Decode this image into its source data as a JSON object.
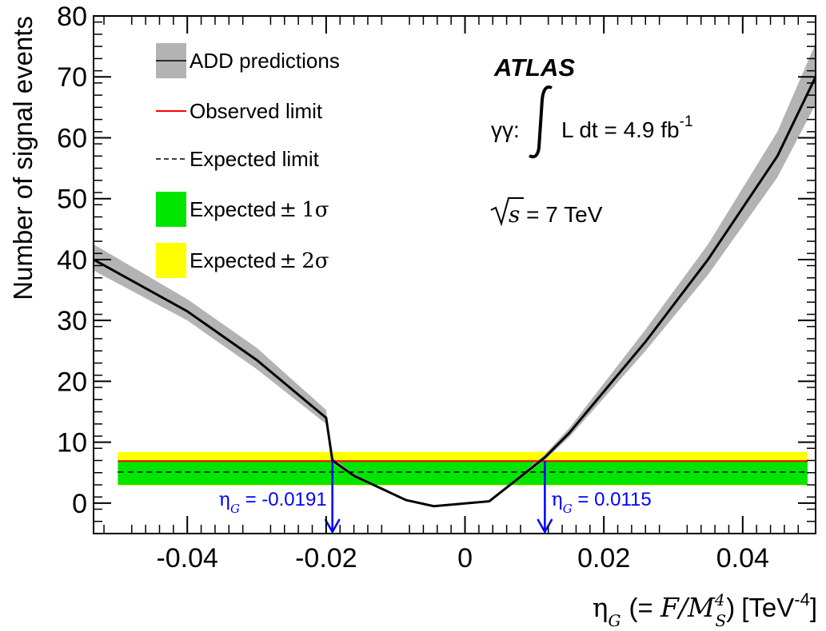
{
  "chart_data": {
    "type": "line",
    "xlabel": {
      "main": "η",
      "sub": "G",
      "paren_open": "(= ",
      "formula": "F/M",
      "sup": "4",
      "sub2": "S",
      "paren_close": ")",
      "unit": "[TeV",
      "unit_exp": "-4",
      "unit_close": "]"
    },
    "ylabel": "Number of signal events",
    "xlim": [
      -0.0535,
      0.0505
    ],
    "ylim": [
      -5,
      80
    ],
    "x_ticks": [
      "-0.04",
      "-0.02",
      "0",
      "0.02",
      "0.04"
    ],
    "x_tick_values": [
      -0.04,
      -0.02,
      0,
      0.02,
      0.04
    ],
    "y_ticks": [
      "0",
      "10",
      "20",
      "30",
      "40",
      "50",
      "60",
      "70",
      "80"
    ],
    "y_tick_values": [
      0,
      10,
      20,
      30,
      40,
      50,
      60,
      70,
      80
    ],
    "add_prediction": {
      "name": "ADD predictions",
      "x": [
        -0.0535,
        -0.04,
        -0.03,
        -0.02,
        -0.0191,
        -0.016,
        -0.0085,
        -0.0045,
        0.0035,
        0.0115,
        0.015,
        0.026,
        0.035,
        0.045,
        0.0505
      ],
      "y": [
        40,
        31.5,
        23.5,
        14.0,
        7.0,
        4.5,
        0.5,
        -0.5,
        0.3,
        7.5,
        11.5,
        26.5,
        40.0,
        57.0,
        70.0
      ],
      "band_lo": [
        38.2,
        30.0,
        22.0,
        13.0,
        6.6,
        4.3,
        0.4,
        -0.6,
        0.2,
        7.1,
        10.8,
        25.0,
        37.5,
        53.5,
        65.5
      ],
      "band_hi": [
        42.5,
        33.5,
        25.5,
        15.3,
        7.5,
        4.8,
        0.6,
        -0.4,
        0.4,
        8.0,
        12.3,
        28.5,
        42.5,
        61.0,
        75.5
      ]
    },
    "observed_limit": {
      "name": "Observed limit",
      "value": 6.9,
      "color": "#ff0000"
    },
    "expected_limit": {
      "name": "Expected limit",
      "value": 5.1
    },
    "band_1sigma": {
      "name": "Expected ± 1σ",
      "lo": 3.0,
      "hi": 7.0,
      "color": "#00e600"
    },
    "band_2sigma": {
      "name": "Expected ± 2σ",
      "lo": 2.9,
      "hi": 8.4,
      "color": "#ffff00"
    },
    "band_x_range": [
      -0.05,
      0.0505
    ],
    "limits": [
      {
        "label_main": "η",
        "label_sub": "G",
        "label_value": " = -0.0191",
        "x": -0.0191,
        "color": "#0000ff"
      },
      {
        "label_main": "η",
        "label_sub": "G",
        "label_value": " = 0.0115",
        "x": 0.0115,
        "color": "#0000ff"
      }
    ],
    "legend": [
      {
        "key": "add",
        "label": "ADD predictions"
      },
      {
        "key": "obs",
        "label": "Observed limit"
      },
      {
        "key": "exp",
        "label": "Expected limit"
      },
      {
        "key": "s1",
        "label_main": "Expected",
        "label_pm": "±",
        "label_sig": "1σ"
      },
      {
        "key": "s2",
        "label_main": "Expected",
        "label_pm": "±",
        "label_sig": "2σ"
      }
    ],
    "annotations": {
      "experiment": "ATLAS",
      "channel": "γγ:",
      "lumi_text": "L dt = 4.9 fb",
      "lumi_exp": "-1",
      "energy_sym": "s",
      "energy_text": " = 7 TeV"
    },
    "colors": {
      "band_gray": "#b3b3b3",
      "line": "#000000",
      "arrow": "#0000ff"
    }
  }
}
